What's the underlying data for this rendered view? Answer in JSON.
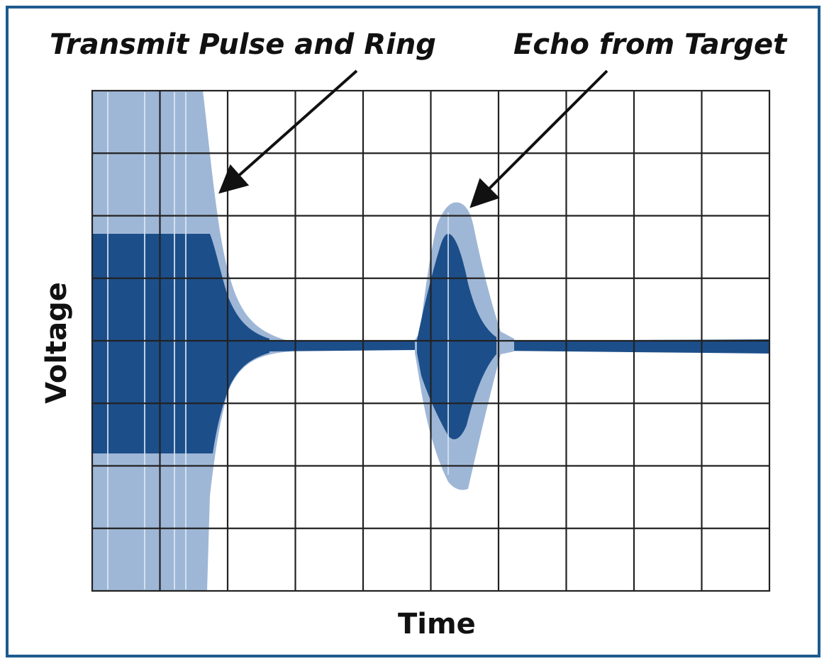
{
  "annotations": {
    "transmit_pulse": "Transmit Pulse and Ring",
    "echo": "Echo from Target"
  },
  "axes": {
    "x_label": "Time",
    "y_label": "Voltage"
  },
  "grid": {
    "columns": 10,
    "rows": 8,
    "visible": true
  },
  "colors": {
    "frame": "#1f5a8f",
    "signal_dark": "#1c4e8a",
    "signal_light": "#9fb7d6",
    "grid": "#222222",
    "arrow": "#111111"
  },
  "waveform": {
    "transmit_pulse_end_division": 1.75,
    "echo_center_division": 5.5,
    "echo_peak_divisions_above_baseline": 2.2,
    "echo_trough_divisions_below_baseline": 2.2
  }
}
